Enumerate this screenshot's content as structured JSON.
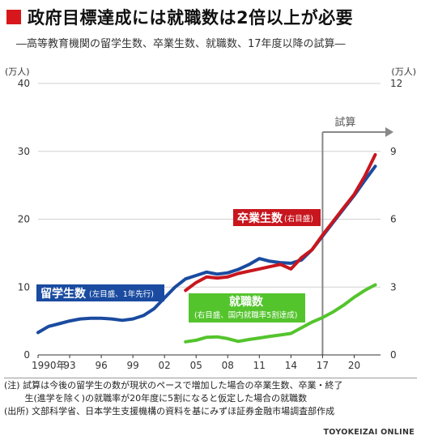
{
  "title": "政府目標達成には就職数は2倍以上が必要",
  "subtitle": "―高等教育機関の留学生数、卒業生数、就職数、17年度以降の試算―",
  "notes": [
    "(注) 試算は今後の留学生の数が現状のペースで増加した場合の卒業生数、卒業・終了",
    "　　 生(進学を除く)の就職率が20年度に5割になると仮定した場合の就職数",
    "(出所) 文部科学省、日本学生支援機構の資料を基にみずほ証券金融市場調査部作成"
  ],
  "credit": "TOYOKEIZAI ONLINE",
  "colors": {
    "ryugaku": "#1a4ba0",
    "sotsugyo": "#c8161e",
    "shushoku": "#54c42d",
    "projection": "#888888",
    "grid": "#d0d0d0"
  },
  "chart_data": {
    "type": "line",
    "xlim": [
      1990,
      2022.5
    ],
    "x_ticks": [
      1990,
      1993,
      1996,
      1999,
      2002,
      2005,
      2008,
      2011,
      2014,
      2017,
      2020
    ],
    "x_tick_labels": [
      "1990年",
      "93",
      "96",
      "99",
      "02",
      "05",
      "08",
      "11",
      "14",
      "17",
      "20"
    ],
    "left_axis": {
      "unit": "(万人)",
      "ylim": [
        0,
        40
      ],
      "ticks": [
        0,
        10,
        20,
        30,
        40
      ]
    },
    "right_axis": {
      "unit": "(万人)",
      "ylim": [
        0,
        12
      ],
      "ticks": [
        0,
        3,
        6,
        9,
        12
      ]
    },
    "projection": {
      "start": 2017,
      "label": "試算"
    },
    "series": [
      {
        "name": "留学生数",
        "label_note": "(左目盛、1年先行)",
        "axis": "left",
        "color_key": "ryugaku",
        "points": [
          [
            1990,
            3.3
          ],
          [
            1991,
            4.2
          ],
          [
            1992,
            4.6
          ],
          [
            1993,
            5.0
          ],
          [
            1994,
            5.3
          ],
          [
            1995,
            5.4
          ],
          [
            1996,
            5.4
          ],
          [
            1997,
            5.3
          ],
          [
            1998,
            5.1
          ],
          [
            1999,
            5.3
          ],
          [
            2000,
            5.8
          ],
          [
            2001,
            6.8
          ],
          [
            2002,
            8.4
          ],
          [
            2003,
            10.0
          ],
          [
            2004,
            11.2
          ],
          [
            2005,
            11.7
          ],
          [
            2006,
            12.2
          ],
          [
            2007,
            11.9
          ],
          [
            2008,
            12.1
          ],
          [
            2009,
            12.6
          ],
          [
            2010,
            13.3
          ],
          [
            2011,
            14.2
          ],
          [
            2012,
            13.8
          ],
          [
            2013,
            13.6
          ],
          [
            2014,
            13.5
          ],
          [
            2015,
            14.0
          ],
          [
            2016,
            15.5
          ],
          [
            2017,
            17.5
          ],
          [
            2018,
            19.5
          ],
          [
            2019,
            21.5
          ],
          [
            2020,
            23.5
          ],
          [
            2021,
            25.7
          ],
          [
            2022,
            27.8
          ]
        ]
      },
      {
        "name": "卒業生数",
        "label_note": "(右目盛)",
        "axis": "right",
        "color_key": "sotsugyo",
        "points": [
          [
            2004,
            2.85
          ],
          [
            2005,
            3.2
          ],
          [
            2006,
            3.45
          ],
          [
            2007,
            3.4
          ],
          [
            2008,
            3.45
          ],
          [
            2009,
            3.6
          ],
          [
            2010,
            3.7
          ],
          [
            2011,
            3.8
          ],
          [
            2012,
            3.9
          ],
          [
            2013,
            4.0
          ],
          [
            2014,
            3.8
          ],
          [
            2015,
            4.3
          ],
          [
            2016,
            4.65
          ],
          [
            2017,
            5.3
          ],
          [
            2018,
            5.9
          ],
          [
            2019,
            6.5
          ],
          [
            2020,
            7.1
          ],
          [
            2021,
            7.9
          ],
          [
            2022,
            8.85
          ]
        ]
      },
      {
        "name": "就職数",
        "label_note": "(右目盛、国内就職率5割達成)",
        "axis": "right",
        "color_key": "shushoku",
        "points": [
          [
            2004,
            0.58
          ],
          [
            2005,
            0.65
          ],
          [
            2006,
            0.78
          ],
          [
            2007,
            0.8
          ],
          [
            2008,
            0.72
          ],
          [
            2009,
            0.6
          ],
          [
            2010,
            0.68
          ],
          [
            2011,
            0.75
          ],
          [
            2012,
            0.82
          ],
          [
            2013,
            0.88
          ],
          [
            2014,
            0.95
          ],
          [
            2015,
            1.2
          ],
          [
            2016,
            1.45
          ],
          [
            2017,
            1.65
          ],
          [
            2018,
            1.9
          ],
          [
            2019,
            2.2
          ],
          [
            2020,
            2.55
          ],
          [
            2021,
            2.85
          ],
          [
            2022,
            3.1
          ]
        ]
      }
    ]
  }
}
